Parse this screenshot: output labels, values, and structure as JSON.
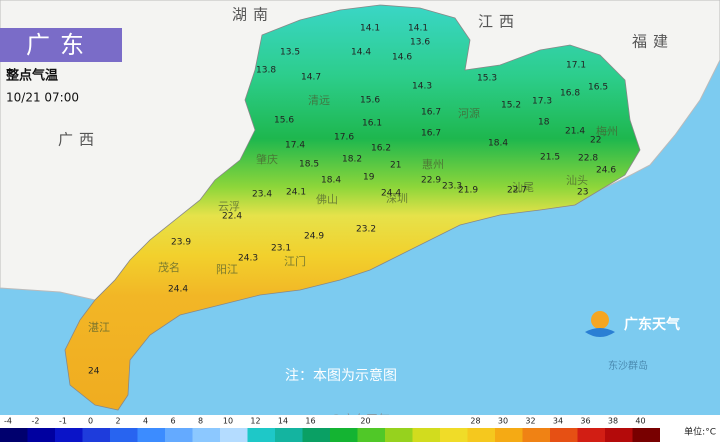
{
  "header": {
    "title": "广东",
    "subtitle": "整点气温",
    "time": "10/21 07:00"
  },
  "provinces": [
    "湖南",
    "江西",
    "福建",
    "广西"
  ],
  "cities": [
    "清远",
    "河源",
    "梅州",
    "惠州",
    "肇庆",
    "佛山",
    "深圳",
    "云浮",
    "江门",
    "阳江",
    "茂名",
    "湛江",
    "汕尾",
    "汕头"
  ],
  "temperatures": [
    14.1,
    14.1,
    13.6,
    13.5,
    14.4,
    14.6,
    13.8,
    14.7,
    14.3,
    15.3,
    17.1,
    16.8,
    16.5,
    15.6,
    15.2,
    17.3,
    16.7,
    15.6,
    16.1,
    18,
    21.4,
    17.6,
    16.2,
    16.7,
    17.4,
    18.4,
    22,
    21.5,
    22.8,
    18.2,
    18.5,
    21,
    22.9,
    22.7,
    21.9,
    23.3,
    18.4,
    19,
    23.4,
    24.1,
    24.4,
    24.6,
    23,
    22.4,
    23.2,
    24.9,
    23.9,
    23.1,
    24.3,
    24.4,
    24
  ],
  "note": "注：本图为示意图",
  "logo": "广东天气",
  "island": "东沙群岛",
  "watermark": "@广东天气",
  "colorbar": {
    "ticks": [
      -4,
      -2,
      -1,
      0,
      2,
      4,
      6,
      8,
      10,
      12,
      14,
      16,
      20,
      28,
      30,
      32,
      34,
      36,
      38,
      40
    ],
    "unit": "单位:°C",
    "colors": [
      "#00006e",
      "#0000a0",
      "#0a14c8",
      "#1e3cdc",
      "#2864f0",
      "#3c8cff",
      "#64aaff",
      "#8cc8ff",
      "#b4dcff",
      "#1ec8c8",
      "#14b4a0",
      "#0aa064",
      "#14b432",
      "#50c828",
      "#96d21e",
      "#d2dc1e",
      "#f0dc28",
      "#f5c81e",
      "#f5aa14",
      "#f08214",
      "#e65014",
      "#d21e14",
      "#b40a0a",
      "#780000"
    ]
  }
}
